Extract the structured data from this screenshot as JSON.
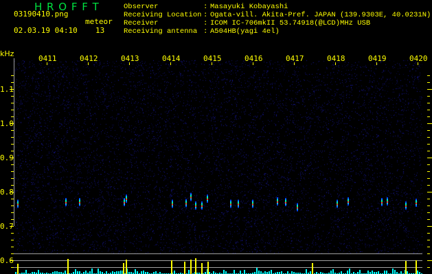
{
  "header": {
    "app_title": "H R O F F T",
    "filename": "03190410.png",
    "datetime": "02.03.19 04:10",
    "meteor_label": "meteor",
    "meteor_count": "13",
    "info": [
      {
        "label": "Observer",
        "value": "Masayuki Kobayashi"
      },
      {
        "label": "Receiving Location",
        "value": "Ogata-vill. Akita-Pref. JAPAN (139.9303E, 40.0231N)"
      },
      {
        "label": "Receiver",
        "value": "ICOM IC-706mkII 53.74918(@LCD)MHz USB"
      },
      {
        "label": "Receiving antenna",
        "value": "A504HB(yagi 4el)"
      }
    ],
    "separator": ":"
  },
  "colors": {
    "text": "#ffff00",
    "title": "#00e040",
    "noise": "#0a0a50",
    "histogram": "#00ffff",
    "detection": "#ffff00",
    "gridline": "#a0a0a0"
  },
  "chart_data": {
    "type": "heatmap",
    "ylabel": "kHz",
    "ylim": [
      0.58,
      1.16
    ],
    "y_ticks": [
      "1.1",
      "1.0",
      "0.9",
      "0.8",
      "0.7",
      "0.6"
    ],
    "x_ticks": [
      "0411",
      "0412",
      "0413",
      "0414",
      "0415",
      "0416",
      "0417",
      "0418",
      "0419",
      "0420"
    ],
    "xlim": [
      "04:10:00",
      "04:20:10"
    ],
    "echoes": [
      {
        "time": "04:10:17",
        "freq": 0.765
      },
      {
        "time": "04:11:27",
        "freq": 0.77
      },
      {
        "time": "04:11:47",
        "freq": 0.77
      },
      {
        "time": "04:12:52",
        "freq": 0.77
      },
      {
        "time": "04:12:55",
        "freq": 0.78
      },
      {
        "time": "04:14:02",
        "freq": 0.765
      },
      {
        "time": "04:14:22",
        "freq": 0.767
      },
      {
        "time": "04:14:29",
        "freq": 0.785
      },
      {
        "time": "04:14:36",
        "freq": 0.76
      },
      {
        "time": "04:14:45",
        "freq": 0.76
      },
      {
        "time": "04:14:53",
        "freq": 0.78
      },
      {
        "time": "04:15:27",
        "freq": 0.765
      },
      {
        "time": "04:15:38",
        "freq": 0.765
      },
      {
        "time": "04:15:59",
        "freq": 0.765
      },
      {
        "time": "04:16:35",
        "freq": 0.772
      },
      {
        "time": "04:16:47",
        "freq": 0.77
      },
      {
        "time": "04:17:04",
        "freq": 0.755
      },
      {
        "time": "04:18:02",
        "freq": 0.765
      },
      {
        "time": "04:18:18",
        "freq": 0.772
      },
      {
        "time": "04:19:07",
        "freq": 0.77
      },
      {
        "time": "04:19:15",
        "freq": 0.772
      },
      {
        "time": "04:19:42",
        "freq": 0.76
      },
      {
        "time": "04:19:57",
        "freq": 0.768
      }
    ],
    "detections": [
      "04:10:17",
      "04:11:30",
      "04:12:51",
      "04:12:55",
      "04:14:01",
      "04:14:20",
      "04:14:29",
      "04:14:36",
      "04:14:45",
      "04:14:54",
      "04:17:26",
      "04:19:42",
      "04:19:57"
    ]
  }
}
